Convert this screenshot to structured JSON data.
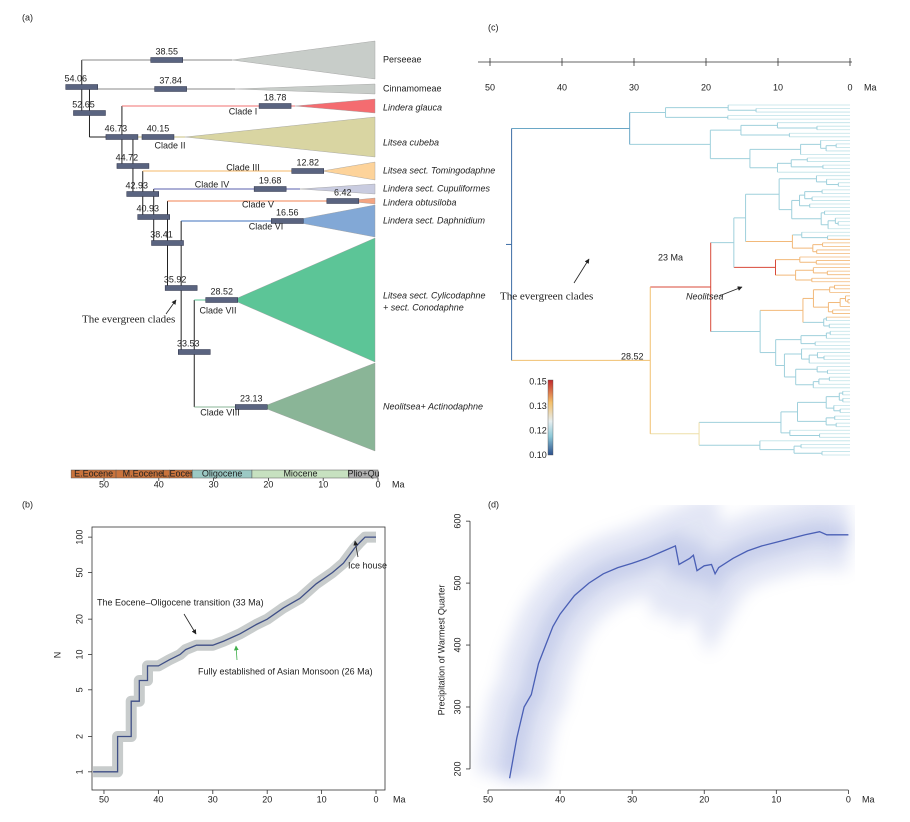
{
  "panel_a": {
    "label": "(a)",
    "tips": [
      "Perseeae",
      "Cinnamomeae",
      "Lindera glauca",
      "Litsea cubeba",
      "Litsea sect. Tomingodaphne",
      "Lindera sect. Cupuliformes",
      "Lindera obtusiloba",
      "Lindera sect. Daphnidium",
      "Litsea sect. Cylicodaphne",
      "+ sect. Conodaphne",
      "Neolitsea+ Actinodaphne"
    ],
    "clades": [
      "Clade I",
      "Clade II",
      "Clade III",
      "Clade IV",
      "Clade V",
      "Clade VI",
      "Clade VII",
      "Clade VIII"
    ],
    "node_ages": [
      54.06,
      52.65,
      46.73,
      44.72,
      42.93,
      40.93,
      38.41,
      35.92,
      33.53
    ],
    "crown_ages": [
      38.55,
      37.84,
      18.78,
      40.15,
      12.82,
      19.68,
      6.42,
      16.56,
      28.52,
      23.13
    ],
    "annotation": "The evergreen clades",
    "epochs": [
      "E.Eocene",
      "M.Eocene",
      "L.Eocene",
      "Oligocene",
      "Miocene",
      "Plio+Qu"
    ],
    "xticks": [
      50,
      40,
      30,
      20,
      10,
      0
    ],
    "unit": "Ma"
  },
  "panel_c": {
    "label": "(c)",
    "xticks": [
      50,
      40,
      30,
      20,
      10,
      0
    ],
    "unit": "Ma",
    "annotations": [
      "23 Ma",
      "Neolitsea",
      "The evergreen clades",
      "28.52"
    ],
    "colorbar_ticks": [
      "0.15",
      "0.13",
      "0.12",
      "0.10"
    ]
  },
  "chart_data": [
    {
      "type": "line",
      "label": "(b)",
      "ylabel": "N",
      "x_unit": "Ma",
      "x": [
        52,
        47.5,
        47.5,
        45,
        45,
        43.5,
        43.5,
        42,
        42,
        40,
        38,
        36,
        35,
        33,
        30,
        28,
        25,
        22,
        20,
        17,
        14,
        11,
        8,
        6,
        4,
        3,
        2,
        0
      ],
      "series": [
        {
          "color": "#3f4f86",
          "values": [
            1,
            1,
            2,
            2,
            4,
            4,
            6,
            6,
            8,
            8,
            9,
            10,
            11,
            12,
            12,
            13,
            15,
            18,
            20,
            25,
            30,
            40,
            50,
            60,
            80,
            90,
            100,
            100
          ]
        }
      ],
      "xlim": [
        52.2,
        -1.65
      ],
      "ylim": [
        0.7,
        122
      ],
      "log_y": true,
      "xticks": [
        50,
        40,
        30,
        20,
        10,
        0
      ],
      "yticks": [
        1,
        2,
        5,
        10,
        20,
        50,
        100
      ],
      "annotations": [
        "The Eocene–Oligocene transition (33 Ma)",
        "Fully established of Asian Monsoon (26 Ma)",
        "Ice house"
      ]
    },
    {
      "type": "line",
      "label": "(d)",
      "ylabel": "Precipitation of Warmest Quarter",
      "x_unit": "Ma",
      "x": [
        47,
        46,
        45,
        44,
        43,
        42,
        41,
        40,
        38,
        36,
        34,
        32,
        30,
        28,
        26,
        24,
        23.5,
        22,
        21.5,
        21,
        20,
        19,
        18.5,
        18,
        16,
        14,
        12,
        10,
        8,
        6,
        4,
        3,
        0
      ],
      "series": [
        {
          "color": "#4a5fb5",
          "values": [
            185,
            250,
            300,
            320,
            370,
            400,
            430,
            450,
            480,
            500,
            515,
            525,
            532,
            540,
            550,
            560,
            530,
            540,
            545,
            520,
            528,
            530,
            515,
            525,
            540,
            552,
            560,
            566,
            572,
            578,
            583,
            578,
            578
          ]
        }
      ],
      "xlim": [
        52.5,
        -0.5
      ],
      "ylim": [
        166,
        618
      ],
      "xticks": [
        50,
        40,
        30,
        20,
        10,
        0
      ],
      "yticks": [
        200,
        300,
        400,
        500,
        600
      ]
    }
  ]
}
